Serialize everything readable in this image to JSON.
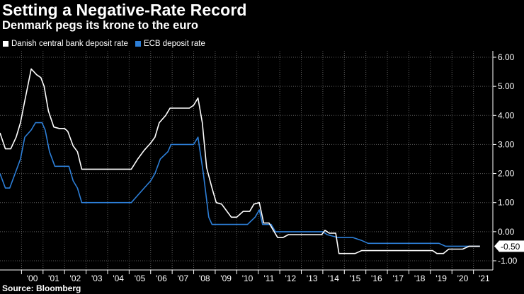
{
  "chart_data": {
    "type": "line",
    "title": "Setting a Negative-Rate Record",
    "subtitle": "Denmark pegs its krone to the euro",
    "source": "Source: Bloomberg",
    "legend_position": "top-left",
    "xlabel": "",
    "ylabel": "",
    "xlim": [
      1999.0,
      2021.9
    ],
    "ylim": [
      -1.0,
      6.0
    ],
    "grid": true,
    "x_ticks": [
      2000,
      2001,
      2002,
      2003,
      2004,
      2005,
      2006,
      2007,
      2008,
      2009,
      2010,
      2011,
      2012,
      2013,
      2014,
      2015,
      2016,
      2017,
      2018,
      2019,
      2020,
      2021
    ],
    "x_tick_labels": [
      "'00",
      "'01",
      "'02",
      "'03",
      "'04",
      "'05",
      "'06",
      "'07",
      "'08",
      "'09",
      "'10",
      "'11",
      "'12",
      "'13",
      "'14",
      "'15",
      "'16",
      "'17",
      "'18",
      "'19",
      "'20",
      "'21"
    ],
    "y_ticks": [
      6,
      5,
      4,
      3,
      2,
      1,
      0,
      -1
    ],
    "y_tick_labels": [
      "6.00",
      "5.00",
      "4.00",
      "3.00",
      "2.00",
      "1.00",
      "0.00",
      "-1.00"
    ],
    "last_value_label": "-0.50",
    "series": [
      {
        "name": "Danish central bank deposit rate",
        "color": "#ffffff",
        "points": [
          [
            1999.0,
            3.4
          ],
          [
            1999.25,
            2.85
          ],
          [
            1999.5,
            2.85
          ],
          [
            1999.75,
            3.25
          ],
          [
            1999.95,
            3.75
          ],
          [
            2000.15,
            4.5
          ],
          [
            2000.45,
            5.6
          ],
          [
            2000.7,
            5.4
          ],
          [
            2000.9,
            5.3
          ],
          [
            2001.05,
            5.0
          ],
          [
            2001.25,
            4.15
          ],
          [
            2001.5,
            3.6
          ],
          [
            2001.75,
            3.55
          ],
          [
            2002.0,
            3.55
          ],
          [
            2002.15,
            3.45
          ],
          [
            2002.4,
            2.95
          ],
          [
            2002.6,
            2.75
          ],
          [
            2002.8,
            2.15
          ],
          [
            2003.0,
            2.15
          ],
          [
            2003.5,
            2.15
          ],
          [
            2004.0,
            2.15
          ],
          [
            2004.5,
            2.15
          ],
          [
            2005.0,
            2.15
          ],
          [
            2005.1,
            2.15
          ],
          [
            2005.4,
            2.5
          ],
          [
            2005.7,
            2.8
          ],
          [
            2006.0,
            3.05
          ],
          [
            2006.2,
            3.25
          ],
          [
            2006.4,
            3.75
          ],
          [
            2006.7,
            4.0
          ],
          [
            2006.9,
            4.25
          ],
          [
            2007.2,
            4.25
          ],
          [
            2007.5,
            4.25
          ],
          [
            2007.8,
            4.25
          ],
          [
            2008.0,
            4.35
          ],
          [
            2008.2,
            4.6
          ],
          [
            2008.4,
            3.75
          ],
          [
            2008.6,
            2.2
          ],
          [
            2008.85,
            1.5
          ],
          [
            2009.05,
            1.0
          ],
          [
            2009.3,
            0.95
          ],
          [
            2009.55,
            0.7
          ],
          [
            2009.75,
            0.5
          ],
          [
            2010.0,
            0.5
          ],
          [
            2010.3,
            0.7
          ],
          [
            2010.6,
            0.7
          ],
          [
            2010.8,
            0.95
          ],
          [
            2011.05,
            1.0
          ],
          [
            2011.25,
            0.3
          ],
          [
            2011.5,
            0.3
          ],
          [
            2011.7,
            0.05
          ],
          [
            2011.9,
            -0.2
          ],
          [
            2012.15,
            -0.2
          ],
          [
            2012.4,
            -0.1
          ],
          [
            2012.6,
            -0.1
          ],
          [
            2013.0,
            -0.1
          ],
          [
            2013.5,
            -0.1
          ],
          [
            2013.95,
            -0.1
          ],
          [
            2014.1,
            0.05
          ],
          [
            2014.3,
            -0.05
          ],
          [
            2014.6,
            -0.05
          ],
          [
            2014.75,
            -0.75
          ],
          [
            2015.0,
            -0.75
          ],
          [
            2015.5,
            -0.75
          ],
          [
            2015.8,
            -0.65
          ],
          [
            2016.5,
            -0.65
          ],
          [
            2017.5,
            -0.65
          ],
          [
            2018.5,
            -0.65
          ],
          [
            2019.1,
            -0.65
          ],
          [
            2019.3,
            -0.75
          ],
          [
            2019.6,
            -0.75
          ],
          [
            2019.85,
            -0.6
          ],
          [
            2020.0,
            -0.6
          ],
          [
            2020.5,
            -0.6
          ],
          [
            2020.8,
            -0.5
          ],
          [
            2021.0,
            -0.5
          ],
          [
            2021.3,
            -0.5
          ]
        ]
      },
      {
        "name": "ECB deposit rate",
        "color": "#2d7fd8",
        "points": [
          [
            1999.0,
            2.0
          ],
          [
            1999.25,
            1.5
          ],
          [
            1999.45,
            1.5
          ],
          [
            1999.7,
            2.0
          ],
          [
            1999.95,
            2.5
          ],
          [
            2000.15,
            3.25
          ],
          [
            2000.45,
            3.5
          ],
          [
            2000.65,
            3.75
          ],
          [
            2000.95,
            3.75
          ],
          [
            2001.1,
            3.5
          ],
          [
            2001.3,
            2.75
          ],
          [
            2001.55,
            2.25
          ],
          [
            2001.8,
            2.25
          ],
          [
            2002.2,
            2.25
          ],
          [
            2002.4,
            1.75
          ],
          [
            2002.6,
            1.5
          ],
          [
            2002.8,
            1.0
          ],
          [
            2003.0,
            1.0
          ],
          [
            2003.5,
            1.0
          ],
          [
            2004.0,
            1.0
          ],
          [
            2004.5,
            1.0
          ],
          [
            2005.0,
            1.0
          ],
          [
            2005.1,
            1.0
          ],
          [
            2005.4,
            1.25
          ],
          [
            2005.7,
            1.5
          ],
          [
            2006.0,
            1.75
          ],
          [
            2006.2,
            2.0
          ],
          [
            2006.45,
            2.5
          ],
          [
            2006.8,
            2.75
          ],
          [
            2006.95,
            3.0
          ],
          [
            2007.2,
            3.0
          ],
          [
            2007.6,
            3.0
          ],
          [
            2007.9,
            3.0
          ],
          [
            2008.0,
            3.0
          ],
          [
            2008.2,
            3.25
          ],
          [
            2008.45,
            2.0
          ],
          [
            2008.7,
            0.5
          ],
          [
            2008.85,
            0.25
          ],
          [
            2009.2,
            0.25
          ],
          [
            2009.6,
            0.25
          ],
          [
            2010.0,
            0.25
          ],
          [
            2010.5,
            0.25
          ],
          [
            2010.85,
            0.5
          ],
          [
            2011.05,
            0.75
          ],
          [
            2011.2,
            0.25
          ],
          [
            2011.6,
            0.25
          ],
          [
            2011.8,
            0.0
          ],
          [
            2012.0,
            0.0
          ],
          [
            2012.5,
            0.0
          ],
          [
            2013.0,
            0.0
          ],
          [
            2013.5,
            0.0
          ],
          [
            2014.0,
            0.0
          ],
          [
            2014.2,
            -0.1
          ],
          [
            2014.7,
            -0.2
          ],
          [
            2015.0,
            -0.2
          ],
          [
            2015.4,
            -0.2
          ],
          [
            2015.8,
            -0.3
          ],
          [
            2016.1,
            -0.4
          ],
          [
            2016.5,
            -0.4
          ],
          [
            2017.5,
            -0.4
          ],
          [
            2018.5,
            -0.4
          ],
          [
            2019.4,
            -0.4
          ],
          [
            2019.7,
            -0.5
          ],
          [
            2020.0,
            -0.5
          ],
          [
            2020.5,
            -0.5
          ],
          [
            2021.0,
            -0.5
          ],
          [
            2021.3,
            -0.5
          ]
        ]
      }
    ]
  }
}
